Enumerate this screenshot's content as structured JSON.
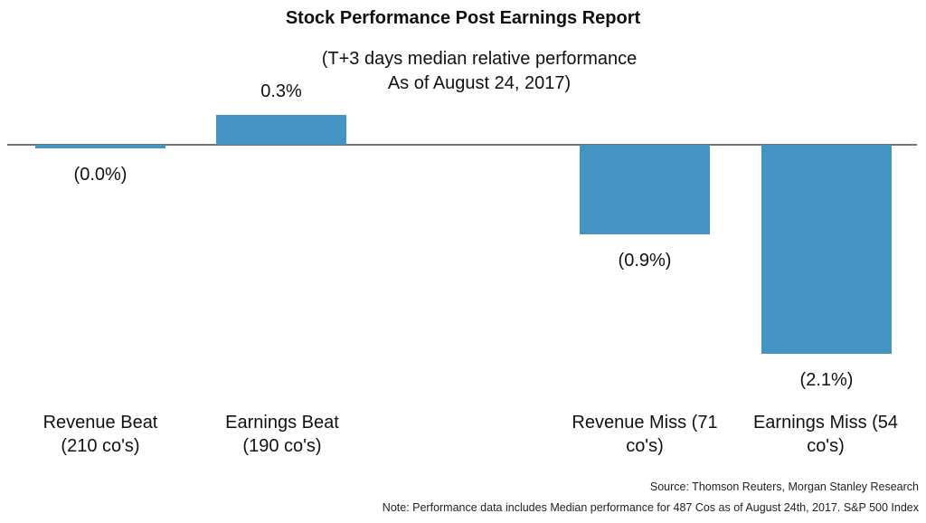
{
  "chart_data": {
    "type": "bar",
    "title": "Stock Performance Post Earnings Report",
    "subtitle_lines": [
      "(T+3 days median relative performance",
      "As of August 24, 2017)"
    ],
    "categories": [
      "Revenue Beat (210 co's)",
      "Earnings Beat (190 co's)",
      "Revenue Miss (71 co's)",
      "Earnings Miss (54 co's)"
    ],
    "category_label_lines": [
      [
        "Revenue Beat",
        "(210 co's)"
      ],
      [
        "Earnings Beat",
        "(190 co's)"
      ],
      [
        "Revenue Miss (71",
        "co's)"
      ],
      [
        "Earnings Miss (54",
        "co's)"
      ]
    ],
    "values": [
      -0.0,
      0.3,
      -0.9,
      -2.1
    ],
    "data_labels": [
      "(0.0%)",
      "0.3%",
      "(0.9%)",
      "(2.1%)"
    ],
    "bar_color": "#4393c3",
    "ylim": [
      -2.1,
      0.3
    ],
    "xlabel": "",
    "ylabel": "",
    "source": "Source: Thomson Reuters, Morgan Stanley Research",
    "note": "Note: Performance data includes Median performance for 487 Cos as of August 24th, 2017. S&P 500 Index"
  }
}
